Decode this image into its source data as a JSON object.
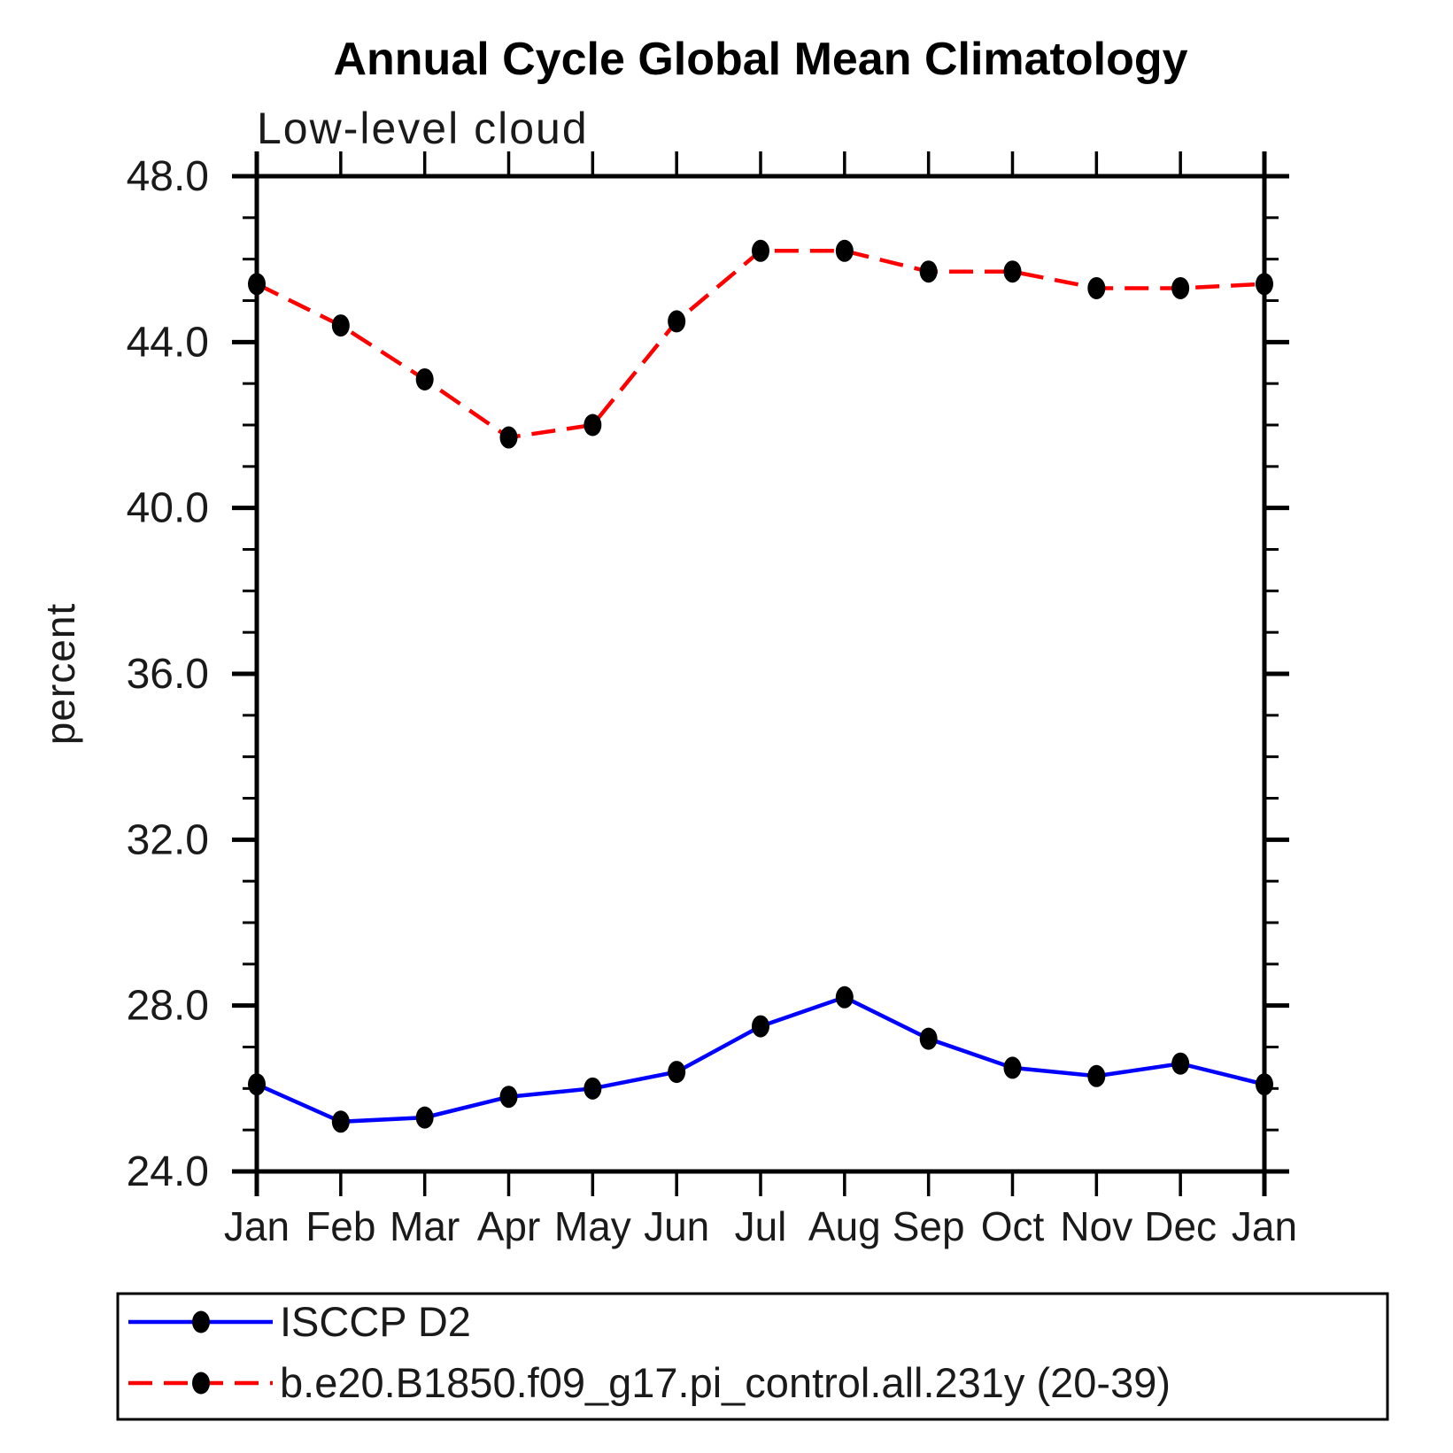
{
  "chart_data": {
    "type": "line",
    "title": "Annual Cycle Global Mean Climatology",
    "subtitle": "Low-level cloud",
    "ylabel": "percent",
    "xlabel": "",
    "categories": [
      "Jan",
      "Feb",
      "Mar",
      "Apr",
      "May",
      "Jun",
      "Jul",
      "Aug",
      "Sep",
      "Oct",
      "Nov",
      "Dec",
      "Jan"
    ],
    "ylim": [
      24.0,
      48.0
    ],
    "yticks_major": [
      24.0,
      28.0,
      32.0,
      36.0,
      40.0,
      44.0,
      48.0
    ],
    "ytick_labels": [
      "24.0",
      "28.0",
      "32.0",
      "36.0",
      "40.0",
      "44.0",
      "48.0"
    ],
    "ytick_minor_step": 1.0,
    "grid": false,
    "legend_position": "bottom-left-box",
    "axis_color": "#000000",
    "marker_shape": "filled-circle",
    "marker_color": "#000000",
    "series": [
      {
        "name": "ISCCP D2",
        "color": "#0000ff",
        "line_style": "solid",
        "values": [
          26.1,
          25.2,
          25.3,
          25.8,
          26.0,
          26.4,
          27.5,
          28.2,
          27.2,
          26.5,
          26.3,
          26.6,
          26.1
        ]
      },
      {
        "name": "b.e20.B1850.f09_g17.pi_control.all.231y (20-39)",
        "color": "#ff0000",
        "line_style": "dashed",
        "values": [
          45.4,
          44.4,
          43.1,
          41.7,
          42.0,
          44.5,
          46.2,
          46.2,
          45.7,
          45.7,
          45.3,
          45.3,
          45.4
        ]
      }
    ]
  }
}
